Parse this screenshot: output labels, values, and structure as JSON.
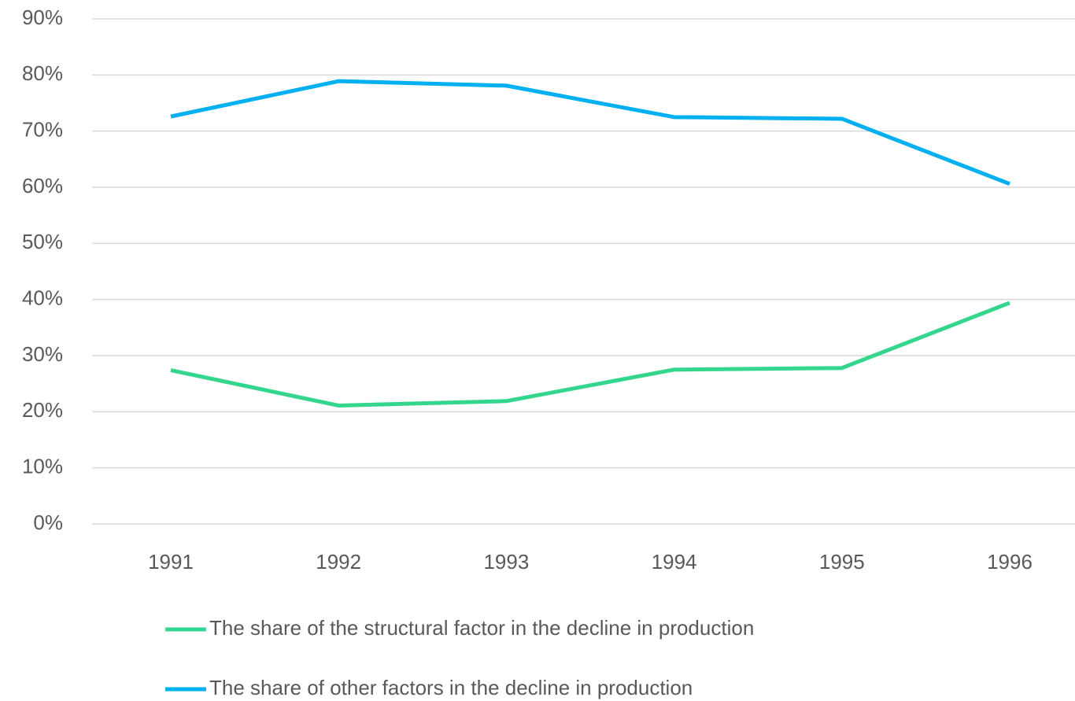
{
  "chart_data": {
    "type": "line",
    "categories": [
      "1991",
      "1992",
      "1993",
      "1994",
      "1995",
      "1996"
    ],
    "series": [
      {
        "name": "The share of the structural factor in the decline in production",
        "color": "#33d68c",
        "values": [
          27.4,
          21.1,
          21.9,
          27.5,
          27.8,
          39.4
        ]
      },
      {
        "name": "The share of other factors in the decline in production",
        "color": "#00b0f0",
        "values": [
          72.6,
          78.9,
          78.1,
          72.5,
          72.2,
          60.6
        ]
      }
    ],
    "ylim": [
      0,
      90
    ],
    "yticks": [
      {
        "value": 0,
        "label": "0%"
      },
      {
        "value": 10,
        "label": "10%"
      },
      {
        "value": 20,
        "label": "20%"
      },
      {
        "value": 30,
        "label": "30%"
      },
      {
        "value": 40,
        "label": "40%"
      },
      {
        "value": 50,
        "label": "50%"
      },
      {
        "value": 60,
        "label": "60%"
      },
      {
        "value": 70,
        "label": "70%"
      },
      {
        "value": 80,
        "label": "80%"
      },
      {
        "value": 90,
        "label": "90%"
      }
    ],
    "grid": true
  }
}
